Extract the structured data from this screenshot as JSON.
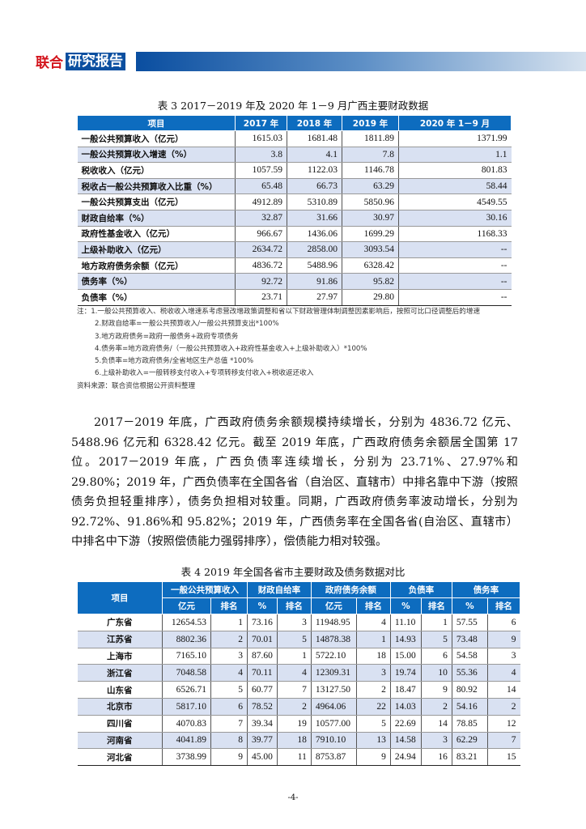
{
  "header": {
    "logo_red": "联合",
    "logo_blue": "研究报告",
    "accent": "#0b4fa0",
    "logo_red_color": "#d3141c"
  },
  "table3": {
    "caption": "表 3   2017－2019 年及 2020 年 1－9 月广西主要财政数据",
    "headers": [
      "项目",
      "2017 年",
      "2018 年",
      "2019 年",
      "2020 年 1－9 月"
    ],
    "rows": [
      [
        "一般公共预算收入（亿元）",
        "1615.03",
        "1681.48",
        "1811.89",
        "1371.99"
      ],
      [
        "一般公共预算收入增速（%）",
        "3.8",
        "4.1",
        "7.8",
        "1.1"
      ],
      [
        "税收收入（亿元）",
        "1057.59",
        "1122.03",
        "1146.78",
        "801.83"
      ],
      [
        "税收占一般公共预算收入比重（%）",
        "65.48",
        "66.73",
        "63.29",
        "58.44"
      ],
      [
        "一般公共预算支出（亿元）",
        "4912.89",
        "5310.89",
        "5850.96",
        "4549.55"
      ],
      [
        "财政自给率（%）",
        "32.87",
        "31.66",
        "30.97",
        "30.16"
      ],
      [
        "政府性基金收入（亿元）",
        "966.67",
        "1436.06",
        "1699.29",
        "1168.33"
      ],
      [
        "上级补助收入（亿元）",
        "2634.72",
        "2858.00",
        "3093.54",
        "--"
      ],
      [
        "地方政府债务余额（亿元）",
        "4836.72",
        "5488.96",
        "6328.42",
        "--"
      ],
      [
        "债务率（%）",
        "92.72",
        "91.86",
        "95.82",
        "--"
      ],
      [
        "负债率（%）",
        "23.71",
        "27.97",
        "29.80",
        "--"
      ]
    ],
    "notes": [
      "注：1.一般公共预算收入、税收收入增速系考虑营改增政策调整和省以下财政管理体制调整因素影响后，按照可比口径调整后的增速",
      "2.财政自给率=一般公共预算收入/一般公共预算支出*100%",
      "3.地方政府债务=政府一般债务+政府专项债务",
      "4.债务率=地方政府债务/（一般公共预算收入+政府性基金收入+上级补助收入）*100%",
      "5.负债率=地方政府债务/全省地区生产总值 *100%",
      "6.上级补助收入=一般转移支付收入+专项转移支付收入+税收返还收入"
    ],
    "source": "资料来源：联合资信根据公开资料整理"
  },
  "paragraph": "2017－2019 年底，广西政府债务余额规模持续增长，分别为 4836.72 亿元、5488.96 亿元和 6328.42 亿元。截至 2019 年底，广西政府债务余额居全国第 17 位。2017－2019 年底，广西负债率连续增长，分别为 23.71%、27.97%和 29.80%；2019 年，广西负债率在全国各省（自治区、直辖市）中排名靠中下游（按照债务负担轻重排序），债务负担相对较重。同期，广西政府债务率波动增长，分别为 92.72%、91.86%和 95.82%；2019 年，广西债务率在全国各省(自治区、直辖市）中排名中下游（按照偿债能力强弱排序），偿债能力相对较强。",
  "table4": {
    "caption": "表 4   2019 年全国各省市主要财政及债务数据对比",
    "group_headers": [
      "项目",
      "一般公共预算收入",
      "财政自给率",
      "政府债务余额",
      "负债率",
      "债务率"
    ],
    "sub_headers": [
      "亿元",
      "排名",
      "%",
      "排名",
      "亿元",
      "排名",
      "%",
      "排名",
      "%",
      "排名"
    ],
    "rows": [
      [
        "广东省",
        "12654.53",
        "1",
        "73.16",
        "3",
        "11948.95",
        "4",
        "11.10",
        "1",
        "57.55",
        "6"
      ],
      [
        "江苏省",
        "8802.36",
        "2",
        "70.01",
        "5",
        "14878.38",
        "1",
        "14.93",
        "5",
        "73.48",
        "9"
      ],
      [
        "上海市",
        "7165.10",
        "3",
        "87.60",
        "1",
        "5722.10",
        "18",
        "15.00",
        "6",
        "54.58",
        "3"
      ],
      [
        "浙江省",
        "7048.58",
        "4",
        "70.11",
        "4",
        "12309.31",
        "3",
        "19.74",
        "10",
        "55.36",
        "4"
      ],
      [
        "山东省",
        "6526.71",
        "5",
        "60.77",
        "7",
        "13127.50",
        "2",
        "18.47",
        "9",
        "80.92",
        "14"
      ],
      [
        "北京市",
        "5817.10",
        "6",
        "78.52",
        "2",
        "4964.06",
        "22",
        "14.03",
        "2",
        "54.16",
        "2"
      ],
      [
        "四川省",
        "4070.83",
        "7",
        "39.34",
        "19",
        "10577.00",
        "5",
        "22.69",
        "14",
        "78.85",
        "12"
      ],
      [
        "河南省",
        "4041.89",
        "8",
        "39.77",
        "18",
        "7910.10",
        "13",
        "14.58",
        "3",
        "62.29",
        "7"
      ],
      [
        "河北省",
        "3738.99",
        "9",
        "45.00",
        "11",
        "8753.87",
        "9",
        "24.94",
        "16",
        "83.21",
        "15"
      ]
    ]
  },
  "page_number": "-4-"
}
